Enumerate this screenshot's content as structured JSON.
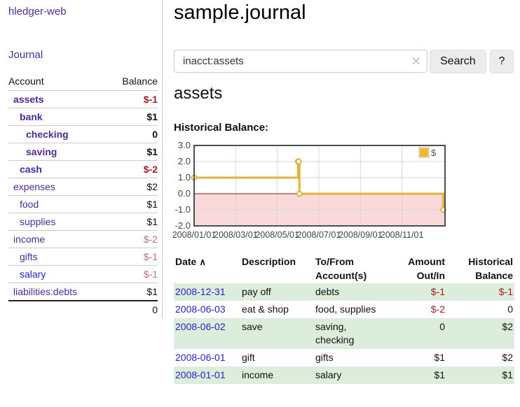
{
  "sidebar": {
    "brand": "hledger-web",
    "journal_label": "Journal",
    "accounts_table": {
      "headers": {
        "account": "Account",
        "balance": "Balance"
      },
      "rows": [
        {
          "name": "assets",
          "depth": 1,
          "bold": true,
          "color": "purple",
          "balance": "$-1",
          "balance_class": "neg"
        },
        {
          "name": "bank",
          "depth": 2,
          "bold": true,
          "color": "purple",
          "balance": "$1",
          "balance_class": ""
        },
        {
          "name": "checking",
          "depth": 3,
          "bold": true,
          "color": "purple",
          "balance": "0",
          "balance_class": ""
        },
        {
          "name": "saving",
          "depth": 3,
          "bold": true,
          "color": "purple",
          "balance": "$1",
          "balance_class": ""
        },
        {
          "name": "cash",
          "depth": 2,
          "bold": true,
          "color": "purple",
          "balance": "$-2",
          "balance_class": "neg"
        },
        {
          "name": "expenses",
          "depth": 1,
          "bold": false,
          "color": "purple",
          "balance": "$2",
          "balance_class": ""
        },
        {
          "name": "food",
          "depth": 2,
          "bold": false,
          "color": "purple",
          "balance": "$1",
          "balance_class": ""
        },
        {
          "name": "supplies",
          "depth": 2,
          "bold": false,
          "color": "purple",
          "balance": "$1",
          "balance_class": ""
        },
        {
          "name": "income",
          "depth": 1,
          "bold": false,
          "color": "purple",
          "balance": "$-2",
          "balance_class": "negsoft"
        },
        {
          "name": "gifts",
          "depth": 2,
          "bold": false,
          "color": "purple",
          "balance": "$-1",
          "balance_class": "negsoft"
        },
        {
          "name": "salary",
          "depth": 2,
          "bold": false,
          "color": "blue",
          "balance": "$-1",
          "balance_class": "negsoft"
        },
        {
          "name": "liabilities:debts",
          "depth": 1,
          "bold": false,
          "color": "purple",
          "balance": "$1",
          "balance_class": ""
        }
      ],
      "total": "0"
    }
  },
  "main": {
    "title": "sample.journal",
    "search": {
      "value": "inacct:assets",
      "clear_icon": "✕",
      "search_label": "Search",
      "help_label": "?"
    },
    "account_heading": "assets",
    "chart_heading": "Historical Balance:",
    "register": {
      "sort_icon": "∧",
      "headers": [
        {
          "line1": "Date",
          "line2": ""
        },
        {
          "line1": "Description",
          "line2": ""
        },
        {
          "line1": "To/From",
          "line2": "Account(s)"
        },
        {
          "line1": "Amount",
          "line2": "Out/In"
        },
        {
          "line1": "Historical",
          "line2": "Balance"
        }
      ],
      "rows": [
        {
          "date": "2008-12-31",
          "description": "pay off",
          "accounts": "debts",
          "amount": "$-1",
          "amount_neg": true,
          "balance": "$-1",
          "balance_neg": true,
          "shaded": true
        },
        {
          "date": "2008-06-03",
          "description": "eat & shop",
          "accounts": "food, supplies",
          "amount": "$-2",
          "amount_neg": true,
          "balance": "0",
          "balance_neg": false,
          "shaded": false
        },
        {
          "date": "2008-06-02",
          "description": "save",
          "accounts": "saving, checking",
          "amount": "0",
          "amount_neg": false,
          "balance": "$2",
          "balance_neg": false,
          "shaded": true
        },
        {
          "date": "2008-06-01",
          "description": "gift",
          "accounts": "gifts",
          "amount": "$1",
          "amount_neg": false,
          "balance": "$2",
          "balance_neg": false,
          "shaded": false
        },
        {
          "date": "2008-01-01",
          "description": "income",
          "accounts": "salary",
          "amount": "$1",
          "amount_neg": false,
          "balance": "$1",
          "balance_neg": false,
          "shaded": true
        }
      ]
    }
  },
  "chart_data": {
    "type": "line",
    "style": "step",
    "title": "Historical Balance:",
    "series": [
      {
        "name": "$",
        "points": [
          {
            "date": "2008-01-01",
            "value": 1
          },
          {
            "date": "2008-06-01",
            "value": 2
          },
          {
            "date": "2008-06-02",
            "value": 2
          },
          {
            "date": "2008-06-03",
            "value": 0
          },
          {
            "date": "2008-12-31",
            "value": -1
          }
        ],
        "color": "#e2b33c"
      }
    ],
    "x_ticks": [
      {
        "label": "2008/01/01",
        "month": 0
      },
      {
        "label": "2008/03/01",
        "month": 2
      },
      {
        "label": "2008/05/01",
        "month": 4
      },
      {
        "label": "2008/07/01",
        "month": 6
      },
      {
        "label": "2008/09/01",
        "month": 8
      },
      {
        "label": "2008/11/01",
        "month": 10
      }
    ],
    "x_span_months": 12.07,
    "y_ticks": [
      "3.0",
      "2.0",
      "1.0",
      "0.0",
      "-1.0",
      "-2.0"
    ],
    "ylim": [
      -2,
      3
    ],
    "grid": true,
    "legend": {
      "label": "$",
      "position": "top-right",
      "swatch_color": "#e5ba43"
    },
    "negative_region_color": "#f9d9d9",
    "zero_line_color": "#8c1717",
    "grid_color": "#d6d6d6",
    "border_color": "#4d4d4d",
    "marker_fill": "#ffffff"
  },
  "colors": {
    "link_purple": "#4c2a9d",
    "link_blue": "#2323cc",
    "negative_strong": "#9e1f1f",
    "negative_soft": "#bb7272",
    "row_green": "#dceddc",
    "button_bg": "#ececec"
  }
}
